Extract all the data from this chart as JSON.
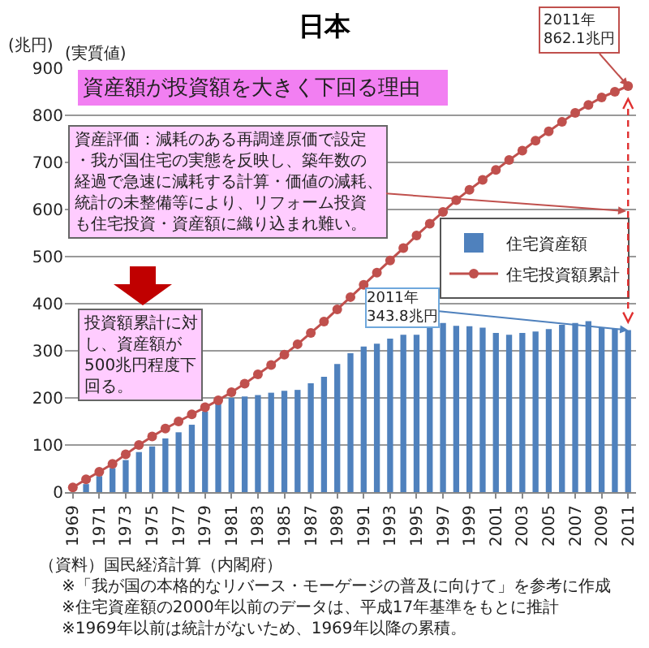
{
  "chart_data": {
    "type": "bar",
    "title": "日本",
    "ylabel": "(兆円)",
    "categories": [
      "1969",
      null,
      "1971",
      null,
      "1973",
      null,
      "1975",
      null,
      "1977",
      null,
      "1979",
      null,
      "1981",
      null,
      "1983",
      null,
      "1985",
      null,
      "1987",
      null,
      "1989",
      null,
      "1991",
      null,
      "1993",
      null,
      "1995",
      null,
      "1997",
      null,
      "1999",
      null,
      "2001",
      null,
      "2003",
      null,
      "2005",
      null,
      "2007",
      null,
      "2009",
      null,
      "2011"
    ],
    "series": [
      {
        "name": "住宅資産額",
        "color": "#4f81bd",
        "values": [
          null,
          17,
          34,
          51,
          68,
          85,
          97,
          114,
          127,
          143,
          171,
          200,
          200,
          203,
          206,
          211,
          215,
          217,
          231,
          245,
          272,
          295,
          309,
          315,
          326,
          334,
          334,
          353,
          359,
          353,
          352,
          349,
          338,
          334,
          338,
          341,
          346,
          355,
          359,
          363,
          349,
          347,
          343.8
        ]
      },
      {
        "name": "住宅投資額累計",
        "type": "line",
        "color": "#c0504d",
        "values": [
          10,
          27,
          43,
          60,
          80,
          100,
          118,
          135,
          150,
          165,
          180,
          195,
          212,
          230,
          250,
          270,
          292,
          314,
          338,
          362,
          388,
          414,
          440,
          466,
          492,
          518,
          545,
          570,
          595,
          620,
          642,
          663,
          684,
          705,
          725,
          746,
          766,
          786,
          805,
          822,
          838,
          850,
          862.1
        ]
      }
    ],
    "ylim": [
      0,
      900
    ],
    "yticks": [
      0,
      100,
      200,
      300,
      400,
      500,
      600,
      700,
      800,
      900
    ],
    "grid": "y",
    "legend": "right",
    "marker": "circle",
    "line_style": "solid",
    "annotations": [
      "(実質値)",
      "資産額が投資額を大きく下回る理由",
      "資産評価：減耗のある再調達原価で設定・我が国住宅の実態を反映し、築年数の経過で急速に減耗する計算・価値の減耗、統計の未整備等により、リフォーム投資も住宅投資・資産額に織り込まれ難い。",
      "投資額累計に対し、資産額が500兆円程度下回る。",
      {
        "text": "2011年\n862.1兆円",
        "x": "2011",
        "y": 862.1
      },
      {
        "text": "2011年\n343.8兆円",
        "x": "2011",
        "y": 343.8
      },
      "（資料）国民経済計算（内閣府）",
      "※「我が国の本格的なリバース・モーゲージの普及に向けて」を参考に作成",
      "※住宅資産額の2000年以前のデータは、平成17年基準をもとに推計",
      "※1969年以前は統計がないため、1969年以降の累積。"
    ]
  }
}
